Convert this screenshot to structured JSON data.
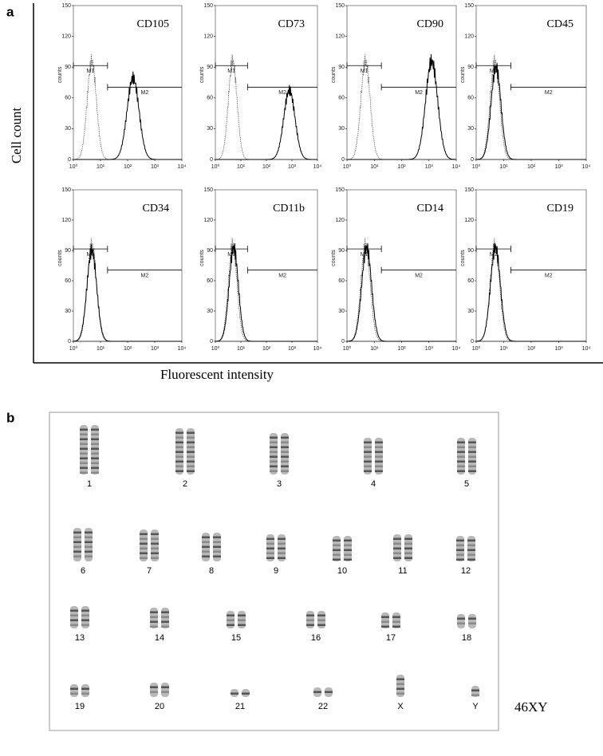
{
  "figure": {
    "panel_a": {
      "label": "a",
      "y_label": "Cell count",
      "x_label": "Fluorescent intensity",
      "counts_label": "counts",
      "gate_1": "M1",
      "gate_2": "M2",
      "yticks": [
        "0",
        "30",
        "60",
        "90",
        "120",
        "150"
      ],
      "xticks": [
        "10⁰",
        "10¹",
        "10²",
        "10³",
        "10⁴"
      ],
      "panels": [
        {
          "name": "CD105"
        },
        {
          "name": "CD73"
        },
        {
          "name": "CD90"
        },
        {
          "name": "CD45"
        },
        {
          "name": "CD34"
        },
        {
          "name": "CD11b"
        },
        {
          "name": "CD14"
        },
        {
          "name": "CD19"
        }
      ]
    },
    "panel_b": {
      "label": "b",
      "karyotype": "46XY",
      "chromosome_rows": [
        [
          "1",
          "2",
          "3",
          "4",
          "5"
        ],
        [
          "6",
          "7",
          "8",
          "9",
          "10",
          "11",
          "12"
        ],
        [
          "13",
          "14",
          "15",
          "16",
          "17",
          "18"
        ],
        [
          "19",
          "20",
          "21",
          "22",
          "X",
          "Y"
        ]
      ]
    }
  }
}
